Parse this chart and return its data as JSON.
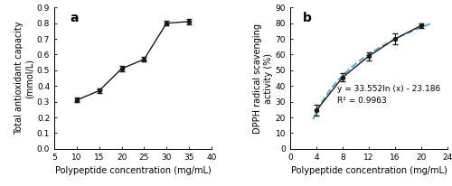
{
  "panel_a": {
    "x": [
      10,
      15,
      20,
      25,
      30,
      35
    ],
    "y": [
      0.31,
      0.37,
      0.51,
      0.57,
      0.8,
      0.81
    ],
    "yerr": [
      0.015,
      0.015,
      0.015,
      0.015,
      0.015,
      0.015
    ],
    "xlabel": "Polypeptide concentration (mg/mL)",
    "ylabel_line1": "Total antioxidant capacity",
    "ylabel_line2": "(mmol/L)",
    "xlim": [
      5,
      40
    ],
    "ylim": [
      0,
      0.9
    ],
    "xticks": [
      5,
      10,
      15,
      20,
      25,
      30,
      35,
      40
    ],
    "yticks": [
      0.0,
      0.1,
      0.2,
      0.3,
      0.4,
      0.5,
      0.6,
      0.7,
      0.8,
      0.9
    ],
    "label": "a"
  },
  "panel_b": {
    "x": [
      4,
      8,
      12,
      16,
      20
    ],
    "y": [
      24.5,
      45.5,
      59.0,
      70.0,
      78.5
    ],
    "yerr": [
      3.5,
      2.5,
      2.5,
      3.5,
      1.5
    ],
    "equation": "y = 33.552ln (x) - 23.186",
    "r2": "R² = 0.9963",
    "xlabel": "Polypeptide concentration (mg/mL)",
    "ylabel_line1": "DPPH radical scavenging",
    "ylabel_line2": "activity (%)",
    "xlim": [
      0,
      24
    ],
    "ylim": [
      0,
      90
    ],
    "xticks": [
      0,
      4,
      8,
      12,
      16,
      20,
      24
    ],
    "yticks": [
      0,
      10,
      20,
      30,
      40,
      50,
      60,
      70,
      80,
      90
    ],
    "fit_x_start": 3.5,
    "fit_x_end": 21.5,
    "label": "b",
    "line_color": "#5aabcc",
    "data_color": "#1a1a1a"
  },
  "figure": {
    "background_color": "#ffffff",
    "linecolor": "#1a1a1a",
    "fontsize_label": 7.0,
    "fontsize_tick": 6.5,
    "fontsize_panel": 10,
    "fontsize_eq": 6.5
  }
}
